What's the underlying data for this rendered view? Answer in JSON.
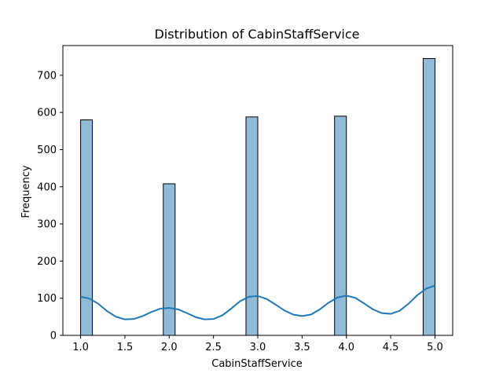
{
  "chart_data": {
    "type": "bar",
    "title": "Distribution of CabinStaffService",
    "xlabel": "CabinStaffService",
    "ylabel": "Frequency",
    "xlim": [
      0.8,
      5.2
    ],
    "ylim": [
      0,
      780
    ],
    "x_ticks": [
      1.0,
      1.5,
      2.0,
      2.5,
      3.0,
      3.5,
      4.0,
      4.5,
      5.0
    ],
    "x_tick_labels": [
      "1.0",
      "1.5",
      "2.0",
      "2.5",
      "3.0",
      "3.5",
      "4.0",
      "4.5",
      "5.0"
    ],
    "y_ticks": [
      0,
      100,
      200,
      300,
      400,
      500,
      600,
      700
    ],
    "y_tick_labels": [
      "0",
      "100",
      "200",
      "300",
      "400",
      "500",
      "600",
      "700"
    ],
    "bin_width": 0.1333,
    "bars": [
      {
        "x_start": 1.0,
        "x_end": 1.1333,
        "value": 580
      },
      {
        "x_start": 1.9333,
        "x_end": 2.0667,
        "value": 408
      },
      {
        "x_start": 2.8667,
        "x_end": 3.0,
        "value": 588
      },
      {
        "x_start": 3.8667,
        "x_end": 4.0,
        "value": 590
      },
      {
        "x_start": 4.8667,
        "x_end": 5.0,
        "value": 745
      }
    ],
    "kde": {
      "x": [
        1.0,
        1.1,
        1.2,
        1.3,
        1.4,
        1.5,
        1.6,
        1.7,
        1.8,
        1.9,
        2.0,
        2.1,
        2.2,
        2.3,
        2.4,
        2.5,
        2.6,
        2.7,
        2.8,
        2.9,
        3.0,
        3.1,
        3.2,
        3.3,
        3.4,
        3.5,
        3.6,
        3.7,
        3.8,
        3.9,
        4.0,
        4.1,
        4.2,
        4.3,
        4.4,
        4.5,
        4.6,
        4.7,
        4.8,
        4.9,
        5.0
      ],
      "y": [
        104,
        99,
        85,
        65,
        50,
        43,
        44,
        52,
        63,
        72,
        74,
        70,
        60,
        49,
        43,
        44,
        54,
        72,
        92,
        104,
        106,
        98,
        83,
        67,
        56,
        52,
        56,
        70,
        88,
        102,
        107,
        101,
        86,
        70,
        60,
        58,
        66,
        85,
        108,
        126,
        134
      ]
    },
    "bar_color": "#1f77b4",
    "bar_fill_opacity": 0.5,
    "bar_edge_color": "#000000",
    "kde_color": "#1f77b4",
    "grid": false,
    "legend": "none"
  }
}
